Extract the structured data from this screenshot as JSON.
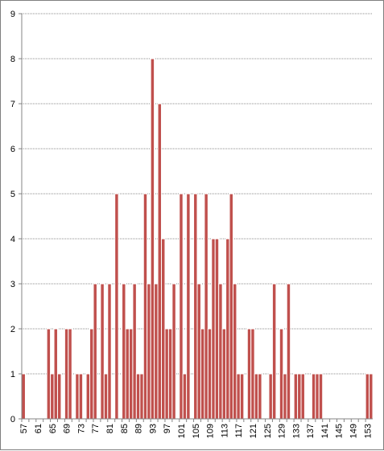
{
  "chart_data": {
    "type": "bar",
    "title": "",
    "xlabel": "",
    "ylabel": "",
    "ylim": [
      0,
      9
    ],
    "yticks": [
      0,
      1,
      2,
      3,
      4,
      5,
      6,
      7,
      8,
      9
    ],
    "grid": "horizontal dotted",
    "legend": "none",
    "bar_color": "#c0504d",
    "bar_border_color": "#ffffff",
    "categories": [
      57,
      58,
      59,
      60,
      61,
      62,
      63,
      64,
      65,
      66,
      67,
      68,
      69,
      70,
      71,
      72,
      73,
      74,
      75,
      76,
      77,
      78,
      79,
      80,
      81,
      82,
      83,
      84,
      85,
      86,
      87,
      88,
      89,
      90,
      91,
      92,
      93,
      94,
      95,
      96,
      97,
      98,
      99,
      100,
      101,
      102,
      103,
      104,
      105,
      106,
      107,
      108,
      109,
      110,
      111,
      112,
      113,
      114,
      115,
      116,
      117,
      118,
      119,
      120,
      121,
      122,
      123,
      124,
      125,
      126,
      127,
      128,
      129,
      130,
      131,
      132,
      133,
      134,
      135,
      136,
      137,
      138,
      139,
      140,
      141,
      142,
      143,
      144,
      145,
      146,
      147,
      148,
      149,
      150,
      151,
      152,
      153,
      154
    ],
    "values": [
      1,
      0,
      0,
      0,
      0,
      0,
      0,
      2,
      1,
      2,
      1,
      0,
      2,
      2,
      0,
      1,
      1,
      0,
      1,
      2,
      3,
      0,
      3,
      1,
      3,
      0,
      5,
      0,
      3,
      2,
      2,
      3,
      1,
      1,
      5,
      3,
      8,
      3,
      7,
      4,
      2,
      2,
      3,
      0,
      5,
      1,
      5,
      0,
      5,
      3,
      2,
      5,
      2,
      4,
      4,
      3,
      2,
      4,
      5,
      3,
      1,
      1,
      0,
      2,
      2,
      1,
      1,
      0,
      0,
      1,
      3,
      0,
      2,
      1,
      3,
      0,
      1,
      1,
      1,
      0,
      0,
      1,
      1,
      1,
      0,
      0,
      0,
      0,
      0,
      0,
      0,
      0,
      0,
      0,
      0,
      0,
      1,
      1
    ],
    "xticklabels": [
      "57",
      "61",
      "65",
      "69",
      "73",
      "77",
      "81",
      "85",
      "89",
      "93",
      "97",
      "101",
      "105",
      "109",
      "113",
      "117",
      "121",
      "125",
      "129",
      "133",
      "137",
      "141",
      "145",
      "149",
      "153"
    ]
  }
}
